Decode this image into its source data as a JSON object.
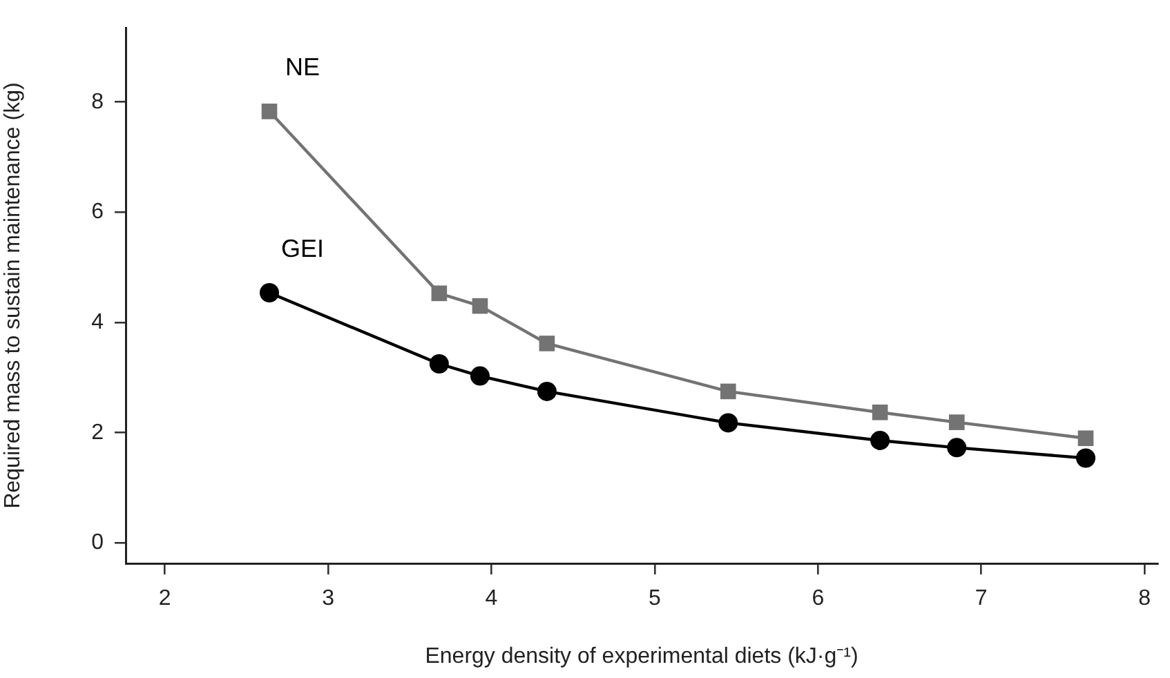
{
  "chart_data": {
    "type": "line",
    "xlabel": "Energy density of experimental diets (kJ·g⁻¹)",
    "ylabel": "Required mass to sustain maintenance (kg)",
    "x": [
      2.64,
      3.68,
      3.93,
      4.34,
      5.45,
      6.38,
      6.85,
      7.64
    ],
    "series": [
      {
        "name": "NE",
        "color": "#737373",
        "marker": "square",
        "values": [
          7.83,
          4.53,
          4.3,
          3.62,
          2.75,
          2.37,
          2.19,
          1.9
        ]
      },
      {
        "name": "GEI",
        "color": "#000000",
        "marker": "circle",
        "values": [
          4.54,
          3.25,
          3.03,
          2.75,
          2.18,
          1.86,
          1.73,
          1.54
        ]
      }
    ],
    "xlim": [
      1.76,
      8.08
    ],
    "xticks": [
      2,
      3,
      4,
      5,
      6,
      7,
      8
    ],
    "ylim": [
      -0.37,
      9.35
    ],
    "yticks": [
      0,
      2,
      4,
      6,
      8
    ],
    "grid": false,
    "legend": false,
    "line_style": "solid"
  }
}
